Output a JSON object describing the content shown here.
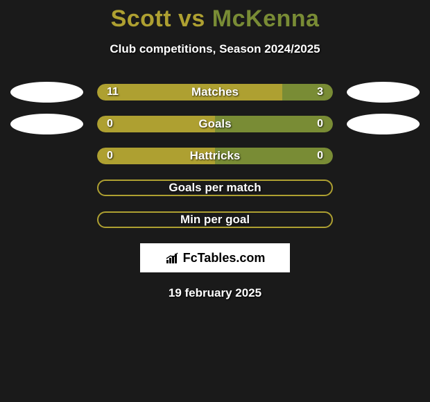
{
  "colors": {
    "background": "#1a1a1a",
    "primary": "#aea031",
    "secondary": "#798c35",
    "outline": "#aea031",
    "text": "#ffffff",
    "oval": "#ffffff"
  },
  "title": {
    "player1": "Scott",
    "vs": "vs",
    "player2": "McKenna",
    "player1_color": "#aea031",
    "vs_color": "#aea031",
    "player2_color": "#798c35",
    "fontsize": 34
  },
  "subtitle": "Club competitions, Season 2024/2025",
  "stats": [
    {
      "label": "Matches",
      "left_value": "11",
      "right_value": "3",
      "left_pct": 78.6,
      "right_pct": 21.4,
      "left_color": "#aea031",
      "right_color": "#798c35",
      "show_left_oval": true,
      "show_right_oval": true,
      "outlined": false
    },
    {
      "label": "Goals",
      "left_value": "0",
      "right_value": "0",
      "left_pct": 50,
      "right_pct": 50,
      "left_color": "#aea031",
      "right_color": "#798c35",
      "show_left_oval": true,
      "show_right_oval": true,
      "outlined": false
    },
    {
      "label": "Hattricks",
      "left_value": "0",
      "right_value": "0",
      "left_pct": 50,
      "right_pct": 50,
      "left_color": "#aea031",
      "right_color": "#798c35",
      "show_left_oval": false,
      "show_right_oval": false,
      "outlined": false
    },
    {
      "label": "Goals per match",
      "left_value": "",
      "right_value": "",
      "left_pct": 0,
      "right_pct": 0,
      "left_color": "#aea031",
      "right_color": "#798c35",
      "show_left_oval": false,
      "show_right_oval": false,
      "outlined": true
    },
    {
      "label": "Min per goal",
      "left_value": "",
      "right_value": "",
      "left_pct": 0,
      "right_pct": 0,
      "left_color": "#aea031",
      "right_color": "#798c35",
      "show_left_oval": false,
      "show_right_oval": false,
      "outlined": true
    }
  ],
  "logo": {
    "text": "FcTables.com",
    "background": "#ffffff",
    "text_color": "#000000"
  },
  "date": "19 february 2025"
}
